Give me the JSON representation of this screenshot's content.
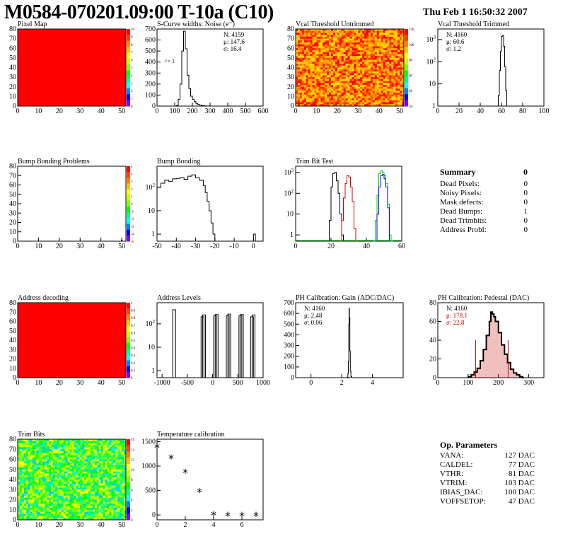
{
  "header": {
    "title": "M0584-070201.09:00 T-10a (C10)",
    "date": "Thu Feb  1 16:50:32 2007"
  },
  "panels": {
    "pixel_map": "Pixel Map",
    "scurve": "S-Curve widths: Noise (e⁻)",
    "vcal_untrimmed": "Vcal Threshold Untrimmed",
    "vcal_trimmed": "Vcal Threshold Trimmed",
    "bump_problems": "Bump Bonding Problems",
    "bump_bonding": "Bump Bonding",
    "trim_bit_test": "Trim Bit Test",
    "address_decoding": "Address decoding",
    "address_levels": "Address Levels",
    "ph_gain": "PH Calibration: Gain (ADC/DAC)",
    "ph_pedestal": "PH Calibration: Pedestal (DAC)",
    "trim_bits": "Trim Bits",
    "temperature": "Temperature calibration"
  },
  "stats": {
    "scurve": [
      "N: 4159",
      "μ: 147.6",
      "σ: 16.4"
    ],
    "scurve_underflow": "<= 1",
    "vcal_trimmed": [
      "N: 4160",
      "μ: 60.6",
      "σ:  1.2"
    ],
    "ph_gain": [
      "N: 4160",
      "μ: 2.48",
      "σ: 0.06"
    ],
    "ph_pedestal": [
      "N: 4160",
      "μ: 178.1",
      "σ: 22.8"
    ]
  },
  "summary": {
    "title": "Summary",
    "total": "0",
    "rows": [
      {
        "label": "Dead Pixels:",
        "value": "0"
      },
      {
        "label": "Noisy Pixels:",
        "value": "0"
      },
      {
        "label": "Mask defects:",
        "value": "0"
      },
      {
        "label": "Dead Bumps:",
        "value": "1"
      },
      {
        "label": "Dead Trimbits:",
        "value": "0"
      },
      {
        "label": "Address Probl:",
        "value": "0"
      }
    ]
  },
  "op_params": {
    "title": "Op. Parameters",
    "rows": [
      {
        "label": "VANA:",
        "value": "127 DAC"
      },
      {
        "label": "CALDEL:",
        "value": "77 DAC"
      },
      {
        "label": "VTHR:",
        "value": "81 DAC"
      },
      {
        "label": "VTRIM:",
        "value": "103 DAC"
      },
      {
        "label": "IBIAS_DAC:",
        "value": "100 DAC"
      },
      {
        "label": "VOFFSETOP:",
        "value": "47 DAC"
      }
    ]
  },
  "colors": {
    "red": "#ff0000",
    "histogram": "#000000",
    "trim_red": "#cc0000",
    "trim_green": "#00cc00",
    "trim_blue": "#0000ff",
    "pedestal_fill": "#cc0000"
  },
  "chart_data": [
    {
      "id": "pixel_map",
      "type": "heatmap",
      "title": "Pixel Map",
      "xlim": [
        0,
        52
      ],
      "ylim": [
        0,
        80
      ],
      "xticks": [
        0,
        10,
        20,
        30,
        40,
        50
      ],
      "yticks": [
        0,
        10,
        20,
        30,
        40,
        50,
        60,
        70,
        80
      ],
      "zlim": [
        0,
        10
      ],
      "fill": "uniform-max",
      "palette_ticks": [
        "10",
        "9",
        "8",
        "7",
        "6",
        "5",
        "4",
        "3",
        "2",
        "1",
        "0"
      ]
    },
    {
      "id": "scurve",
      "type": "histogram",
      "title": "S-Curve widths: Noise (e⁻)",
      "xlim": [
        0,
        600
      ],
      "ylim": [
        0,
        700
      ],
      "log": false,
      "xticks": [
        0,
        100,
        200,
        300,
        400,
        500,
        600
      ],
      "yticks": [
        0,
        100,
        200,
        300,
        400,
        500,
        600,
        700
      ],
      "bins": [
        [
          100,
          0
        ],
        [
          110,
          5
        ],
        [
          120,
          60
        ],
        [
          130,
          200
        ],
        [
          140,
          500
        ],
        [
          150,
          680
        ],
        [
          160,
          520
        ],
        [
          170,
          280
        ],
        [
          180,
          160
        ],
        [
          190,
          90
        ],
        [
          200,
          60
        ],
        [
          210,
          40
        ],
        [
          220,
          25
        ],
        [
          230,
          15
        ],
        [
          240,
          10
        ],
        [
          250,
          6
        ],
        [
          260,
          3
        ],
        [
          270,
          2
        ],
        [
          280,
          1
        ],
        [
          300,
          0
        ]
      ]
    },
    {
      "id": "vcal_untrimmed",
      "type": "heatmap",
      "title": "Vcal Threshold Untrimmed",
      "xlim": [
        0,
        52
      ],
      "ylim": [
        0,
        80
      ],
      "xticks": [
        0,
        10,
        20,
        30,
        40,
        50
      ],
      "yticks": [
        0,
        10,
        20,
        30,
        40,
        50,
        60,
        70,
        80
      ],
      "zlim": [
        0,
        130
      ],
      "fill": "noise-orange",
      "palette_ticks": [
        "120",
        "100",
        "80",
        "60",
        "40",
        "20"
      ]
    },
    {
      "id": "vcal_trimmed",
      "type": "histogram",
      "title": "Vcal Threshold Trimmed",
      "xlim": [
        0,
        100
      ],
      "ylim": [
        1,
        3000
      ],
      "log": true,
      "xticks": [
        0,
        20,
        40,
        60,
        80,
        100
      ],
      "bins": [
        [
          56,
          1
        ],
        [
          57,
          3
        ],
        [
          58,
          40
        ],
        [
          59,
          300
        ],
        [
          60,
          1400
        ],
        [
          61,
          1500
        ],
        [
          62,
          500
        ],
        [
          63,
          60
        ],
        [
          64,
          5
        ],
        [
          65,
          1
        ],
        [
          66,
          1
        ]
      ]
    },
    {
      "id": "bump_problems",
      "type": "heatmap",
      "title": "Bump Bonding Problems",
      "xlim": [
        0,
        52
      ],
      "ylim": [
        0,
        80
      ],
      "xticks": [
        0,
        10,
        20,
        30,
        40,
        50
      ],
      "yticks": [
        0,
        10,
        20,
        30,
        40,
        50,
        60,
        70,
        80
      ],
      "zlim": [
        0,
        5
      ],
      "fill": "empty",
      "palette_ticks": [
        "5",
        "4",
        "3",
        "2",
        "1",
        "0",
        "-1",
        "-2",
        "-3",
        "-4",
        "-5"
      ],
      "points": [
        [
          50,
          1
        ]
      ]
    },
    {
      "id": "bump_bonding",
      "type": "histogram",
      "title": "Bump Bonding",
      "xlim": [
        -50,
        5
      ],
      "ylim": [
        0.5,
        800
      ],
      "log": true,
      "xticks": [
        -50,
        -40,
        -30,
        -20,
        -10,
        0
      ],
      "bins": [
        [
          -50,
          100
        ],
        [
          -48,
          150
        ],
        [
          -46,
          200
        ],
        [
          -44,
          180
        ],
        [
          -42,
          230
        ],
        [
          -40,
          240
        ],
        [
          -38,
          260
        ],
        [
          -36,
          220
        ],
        [
          -34,
          300
        ],
        [
          -32,
          340
        ],
        [
          -30,
          260
        ],
        [
          -28,
          200
        ],
        [
          -26,
          120
        ],
        [
          -25,
          60
        ],
        [
          -24,
          25
        ],
        [
          -23,
          10
        ],
        [
          -22,
          3
        ],
        [
          -21,
          1
        ],
        [
          -20,
          0.5
        ],
        [
          0,
          1
        ],
        [
          1,
          0.5
        ]
      ]
    },
    {
      "id": "trim_bit_test",
      "type": "line",
      "title": "Trim Bit Test",
      "xlim": [
        0,
        60
      ],
      "ylim": [
        0.5,
        2000
      ],
      "log": true,
      "xticks": [
        0,
        20,
        40,
        60
      ],
      "series": [
        {
          "color": "#000000",
          "values": [
            [
              18,
              0.5
            ],
            [
              19,
              5
            ],
            [
              20,
              200
            ],
            [
              21,
              900
            ],
            [
              22,
              1000
            ],
            [
              23,
              400
            ],
            [
              24,
              100
            ],
            [
              25,
              10
            ],
            [
              26,
              1
            ],
            [
              27,
              0.5
            ]
          ]
        },
        {
          "color": "#cc0000",
          "values": [
            [
              25,
              0.5
            ],
            [
              26,
              5
            ],
            [
              27,
              60
            ],
            [
              28,
              300
            ],
            [
              29,
              700
            ],
            [
              30,
              600
            ],
            [
              31,
              200
            ],
            [
              32,
              40
            ],
            [
              33,
              2
            ],
            [
              34,
              0.5
            ]
          ]
        },
        {
          "color": "#00cc00",
          "values": [
            [
              44,
              0.5
            ],
            [
              45,
              5
            ],
            [
              46,
              80
            ],
            [
              47,
              900
            ],
            [
              48,
              1200
            ],
            [
              49,
              1000
            ],
            [
              50,
              700
            ],
            [
              51,
              300
            ],
            [
              52,
              30
            ],
            [
              53,
              1
            ],
            [
              54,
              0.5
            ]
          ]
        },
        {
          "color": "#0000ff",
          "values": [
            [
              45,
              0.5
            ],
            [
              46,
              10
            ],
            [
              47,
              200
            ],
            [
              48,
              700
            ],
            [
              49,
              800
            ],
            [
              50,
              500
            ],
            [
              51,
              200
            ],
            [
              52,
              20
            ],
            [
              53,
              0.5
            ]
          ]
        }
      ]
    },
    {
      "id": "address_decoding",
      "type": "heatmap",
      "title": "Address decoding",
      "xlim": [
        0,
        52
      ],
      "ylim": [
        0,
        80
      ],
      "xticks": [
        0,
        10,
        20,
        30,
        40,
        50
      ],
      "yticks": [
        0,
        10,
        20,
        30,
        40,
        50,
        60,
        70,
        80
      ],
      "zlim": [
        0,
        1
      ],
      "fill": "uniform-max",
      "palette_ticks": [
        "1",
        "0.9",
        "0.8",
        "0.7",
        "0.6",
        "0.5",
        "0.4",
        "0.3",
        "0.2",
        "0.1",
        "0"
      ]
    },
    {
      "id": "address_levels",
      "type": "histogram",
      "title": "Address Levels",
      "xlim": [
        -1100,
        1000
      ],
      "ylim": [
        0.5,
        800
      ],
      "log": true,
      "xticks": [
        -1000,
        -500,
        0,
        500,
        1000
      ],
      "peaks": [
        [
          -760,
          400
        ],
        [
          -200,
          200
        ],
        [
          -170,
          240
        ],
        [
          50,
          220
        ],
        [
          80,
          250
        ],
        [
          300,
          220
        ],
        [
          330,
          260
        ],
        [
          550,
          220
        ],
        [
          580,
          250
        ],
        [
          780,
          200
        ],
        [
          810,
          240
        ]
      ]
    },
    {
      "id": "ph_gain",
      "type": "histogram",
      "title": "PH Calibration: Gain (ADC/DAC)",
      "xlim": [
        -1,
        6
      ],
      "ylim": [
        0,
        700
      ],
      "log": false,
      "xticks": [
        0,
        2,
        4
      ],
      "yticks": [
        0,
        100,
        200,
        300,
        400,
        500,
        600,
        700
      ],
      "bins": [
        [
          2.3,
          0
        ],
        [
          2.35,
          5
        ],
        [
          2.4,
          40
        ],
        [
          2.43,
          150
        ],
        [
          2.46,
          500
        ],
        [
          2.48,
          650
        ],
        [
          2.5,
          560
        ],
        [
          2.53,
          250
        ],
        [
          2.56,
          60
        ],
        [
          2.6,
          10
        ],
        [
          2.65,
          0
        ]
      ]
    },
    {
      "id": "ph_pedestal",
      "type": "histogram",
      "title": "PH Calibration: Pedestal (DAC)",
      "xlim": [
        0,
        350
      ],
      "ylim": [
        0,
        80
      ],
      "log": false,
      "xticks": [
        0,
        100,
        200,
        300
      ],
      "yticks": [
        0,
        20,
        40,
        60,
        80
      ],
      "mu_lines": [
        125,
        232
      ],
      "bins": [
        [
          100,
          1
        ],
        [
          110,
          3
        ],
        [
          120,
          6
        ],
        [
          130,
          10
        ],
        [
          140,
          18
        ],
        [
          150,
          30
        ],
        [
          160,
          45
        ],
        [
          170,
          60
        ],
        [
          175,
          70
        ],
        [
          180,
          68
        ],
        [
          185,
          65
        ],
        [
          190,
          60
        ],
        [
          200,
          48
        ],
        [
          210,
          35
        ],
        [
          220,
          25
        ],
        [
          230,
          16
        ],
        [
          240,
          9
        ],
        [
          250,
          5
        ],
        [
          260,
          3
        ],
        [
          270,
          1
        ],
        [
          280,
          0
        ]
      ]
    },
    {
      "id": "trim_bits",
      "type": "heatmap",
      "title": "Trim Bits",
      "xlim": [
        0,
        52
      ],
      "ylim": [
        0,
        80
      ],
      "xticks": [
        0,
        10,
        20,
        30,
        40,
        50
      ],
      "yticks": [
        0,
        10,
        20,
        30,
        40,
        50,
        60,
        70,
        80
      ],
      "zlim": [
        0,
        16
      ],
      "fill": "noise-green",
      "palette_ticks": [
        "16",
        "14",
        "12",
        "10",
        "8",
        "6",
        "4",
        "2",
        "0"
      ]
    },
    {
      "id": "temperature",
      "type": "scatter",
      "title": "Temperature calibration",
      "xlim": [
        0,
        7.5
      ],
      "ylim": [
        -100,
        1550
      ],
      "xticks": [
        0,
        2,
        4,
        6
      ],
      "yticks": [
        0,
        500,
        1000,
        1500
      ],
      "x": [
        0,
        1,
        2,
        3,
        4,
        5,
        6,
        7
      ],
      "y": [
        1380,
        1160,
        870,
        470,
        0,
        -10,
        -10,
        -10
      ]
    }
  ]
}
